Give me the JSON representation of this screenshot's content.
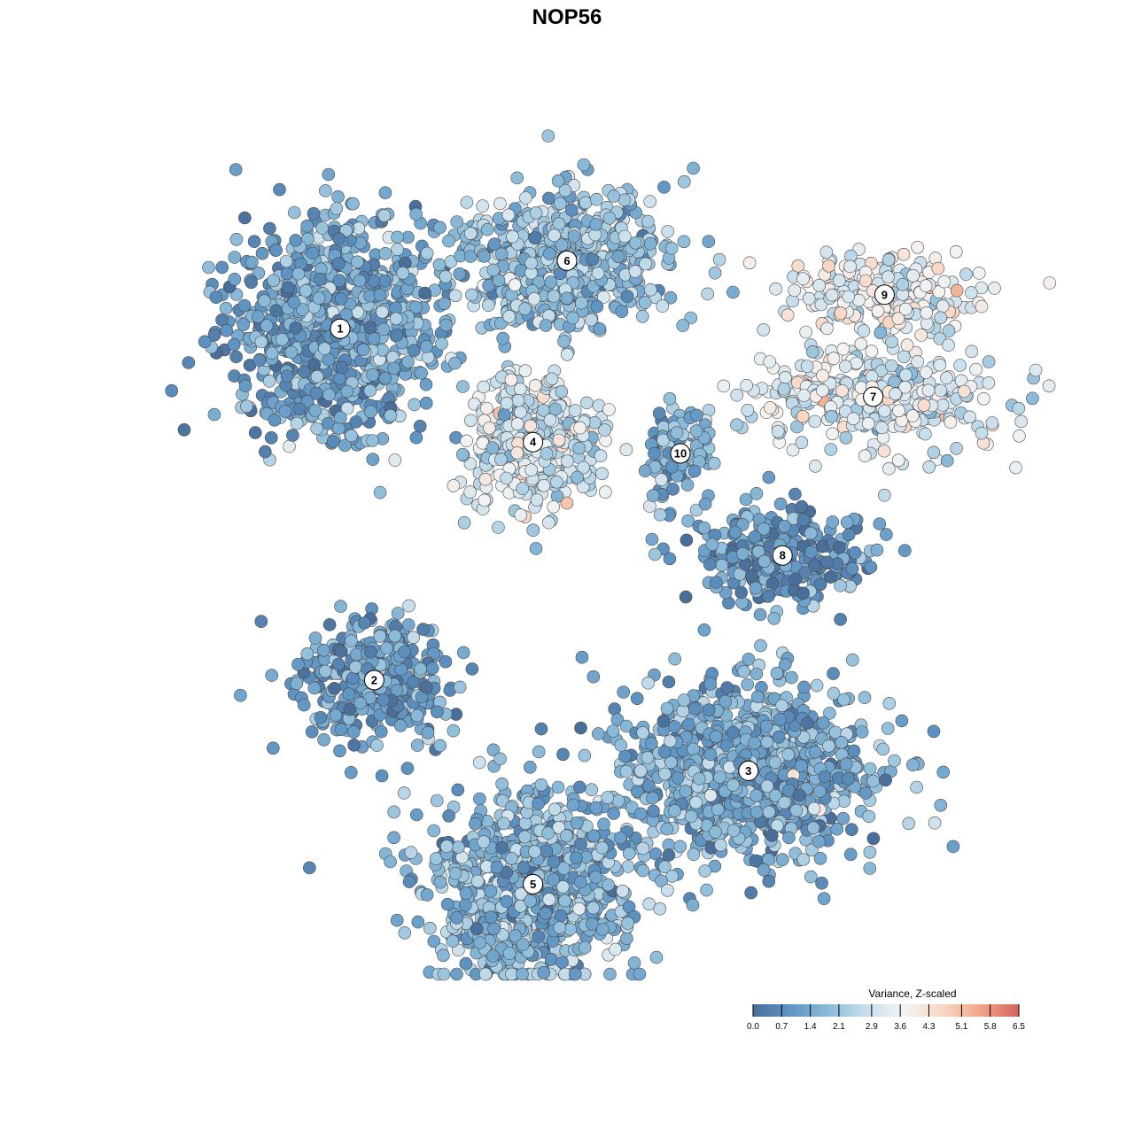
{
  "chart_data": {
    "type": "scatter",
    "title": "NOP56",
    "xlabel": "",
    "ylabel": "",
    "grid": false,
    "legend": {
      "title": "Variance, Z-scaled",
      "placement": "bottom-right",
      "ticks": [
        "0.0",
        "0.7",
        "1.4",
        "2.1",
        "2.9",
        "3.6",
        "4.3",
        "5.1",
        "5.8",
        "6.5"
      ],
      "range": [
        0,
        6.5
      ],
      "colors": [
        "#4a6e9a",
        "#5f95c4",
        "#8bbbd9",
        "#c8dfec",
        "#f3f3f3",
        "#f9d6c4",
        "#f0a585",
        "#d7625f"
      ]
    },
    "clusters": [
      {
        "id": "1",
        "center": [
          0.3,
          0.29
        ],
        "spread": [
          0.085,
          0.085
        ],
        "n": 900,
        "mean": 1.3
      },
      {
        "id": "6",
        "center": [
          0.5,
          0.23
        ],
        "spread": [
          0.08,
          0.05
        ],
        "n": 650,
        "mean": 2.0
      },
      {
        "id": "9",
        "center": [
          0.78,
          0.26
        ],
        "spread": [
          0.07,
          0.035
        ],
        "n": 230,
        "mean": 3.4
      },
      {
        "id": "7",
        "center": [
          0.77,
          0.35
        ],
        "spread": [
          0.1,
          0.04
        ],
        "n": 330,
        "mean": 3.1
      },
      {
        "id": "4",
        "center": [
          0.47,
          0.39
        ],
        "spread": [
          0.05,
          0.05
        ],
        "n": 420,
        "mean": 3.0
      },
      {
        "id": "10",
        "center": [
          0.6,
          0.4
        ],
        "spread": [
          0.03,
          0.04
        ],
        "n": 110,
        "mean": 1.6
      },
      {
        "id": "8",
        "center": [
          0.69,
          0.49
        ],
        "spread": [
          0.07,
          0.04
        ],
        "n": 300,
        "mean": 1.0
      },
      {
        "id": "2",
        "center": [
          0.33,
          0.6
        ],
        "spread": [
          0.06,
          0.05
        ],
        "n": 330,
        "mean": 1.1
      },
      {
        "id": "3",
        "center": [
          0.66,
          0.68
        ],
        "spread": [
          0.1,
          0.07
        ],
        "n": 1000,
        "mean": 1.5
      },
      {
        "id": "5",
        "center": [
          0.47,
          0.78
        ],
        "spread": [
          0.08,
          0.07
        ],
        "n": 900,
        "mean": 1.7
      }
    ]
  }
}
